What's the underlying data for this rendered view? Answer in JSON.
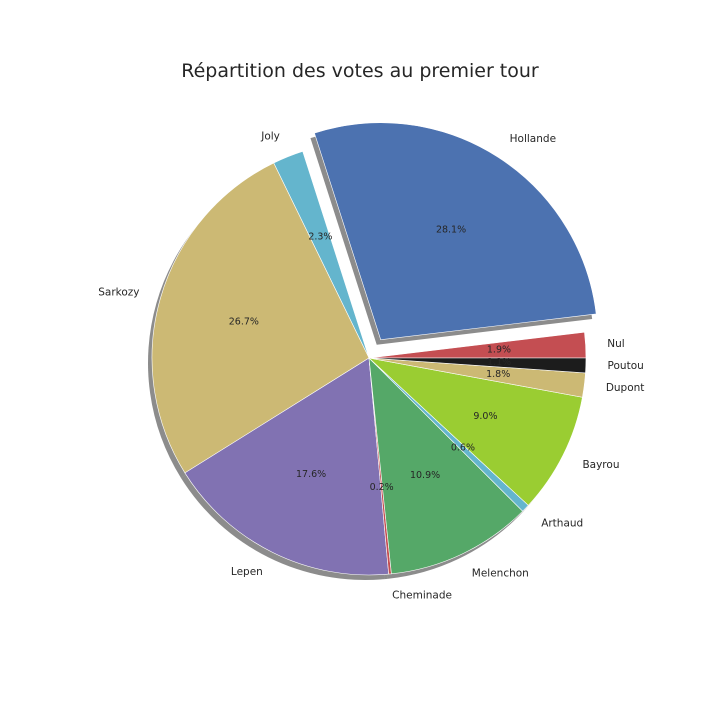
{
  "chart_data": {
    "type": "pie",
    "title": "Répartition des votes au premier tour",
    "start_angle_deg": 0,
    "direction": "counterclockwise",
    "shadow": true,
    "slices": [
      {
        "label": "Nul",
        "pct_label": "1.9%",
        "value": 1.9,
        "color": "#c44e52",
        "explode": 0
      },
      {
        "label": "Hollande",
        "pct_label": "28.1%",
        "value": 28.1,
        "color": "#4c72b0",
        "explode": 0.1
      },
      {
        "label": "Joly",
        "pct_label": "2.3%",
        "value": 2.3,
        "color": "#64b5cd",
        "explode": 0
      },
      {
        "label": "Sarkozy",
        "pct_label": "26.7%",
        "value": 26.7,
        "color": "#ccb974",
        "explode": 0
      },
      {
        "label": "Lepen",
        "pct_label": "17.6%",
        "value": 17.6,
        "color": "#8172b2",
        "explode": 0
      },
      {
        "label": "Cheminade",
        "pct_label": "0.2%",
        "value": 0.2,
        "color": "#c44e52",
        "explode": 0
      },
      {
        "label": "Melenchon",
        "pct_label": "10.9%",
        "value": 10.9,
        "color": "#55a868",
        "explode": 0
      },
      {
        "label": "Arthaud",
        "pct_label": "0.6%",
        "value": 0.6,
        "color": "#64b5cd",
        "explode": 0
      },
      {
        "label": "Bayrou",
        "pct_label": "9.0%",
        "value": 9.0,
        "color": "#9acd32",
        "explode": 0
      },
      {
        "label": "Dupont",
        "pct_label": "1.8%",
        "value": 1.8,
        "color": "#ccb974",
        "explode": 0
      },
      {
        "label": "Poutou",
        "pct_label": "1.1%",
        "value": 1.1,
        "color": "#1c1c1c",
        "explode": 0
      }
    ]
  }
}
